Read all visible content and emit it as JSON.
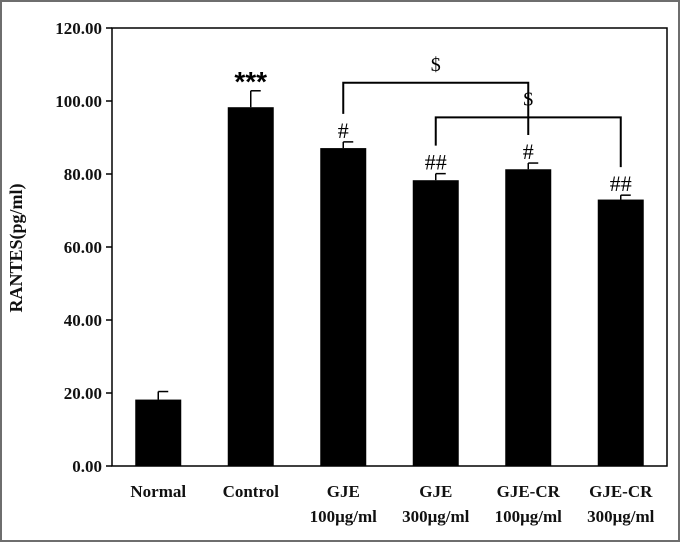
{
  "chart_data": {
    "type": "bar",
    "ylabel": "RANTES(pg/ml)",
    "ylim": [
      0,
      120
    ],
    "yticks": [
      "0.00",
      "20.00",
      "40.00",
      "60.00",
      "80.00",
      "100.00",
      "120.00"
    ],
    "categories": [
      {
        "line1": "Normal",
        "line2": ""
      },
      {
        "line1": "Control",
        "line2": ""
      },
      {
        "line1": "GJE",
        "line2": "100μg/ml"
      },
      {
        "line1": "GJE",
        "line2": "300μg/ml"
      },
      {
        "line1": "GJE-CR",
        "line2": "100μg/ml"
      },
      {
        "line1": "GJE-CR",
        "line2": "300μg/ml"
      }
    ],
    "values": [
      18.2,
      98.3,
      87.1,
      78.3,
      81.3,
      73.0
    ],
    "errors": [
      2.2,
      4.5,
      1.7,
      1.8,
      1.7,
      1.2
    ],
    "significance": [
      "",
      "***",
      "#",
      "##",
      "#",
      "##"
    ],
    "brackets": [
      {
        "from": 2,
        "to": 4,
        "label": "$"
      },
      {
        "from": 3,
        "to": 5,
        "label": "$"
      }
    ],
    "colors": {
      "bar": "#000000",
      "axis": "#000000"
    },
    "grid": false
  }
}
